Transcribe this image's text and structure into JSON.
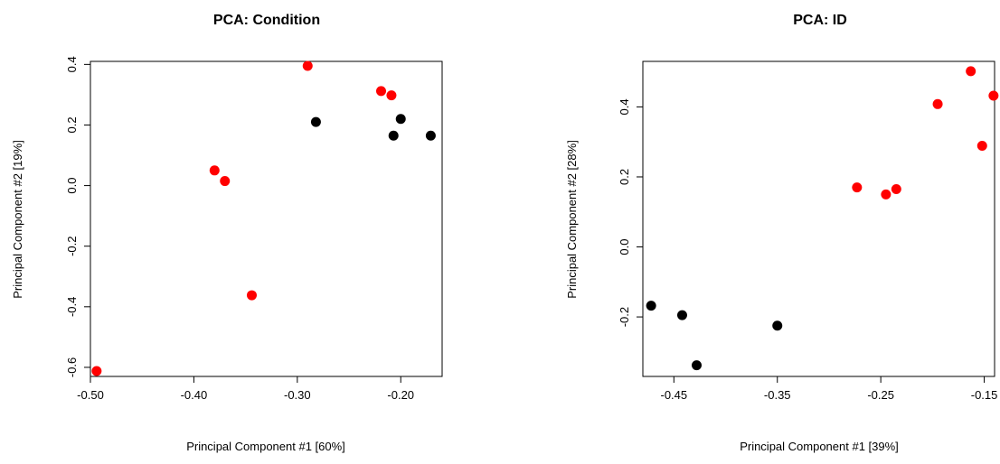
{
  "chart_data": [
    {
      "type": "scatter",
      "title": "PCA: Condition",
      "xlabel": "Principal Component #1 [60%]",
      "ylabel": "Principal Component #2 [19%]",
      "xlim": [
        -0.5,
        -0.16
      ],
      "ylim": [
        -0.63,
        0.41
      ],
      "xticks": [
        -0.5,
        -0.4,
        -0.3,
        -0.2
      ],
      "xtick_labels": [
        "-0.50",
        "-0.40",
        "-0.30",
        "-0.20"
      ],
      "yticks": [
        -0.6,
        -0.4,
        -0.2,
        0.0,
        0.2,
        0.4
      ],
      "ytick_labels": [
        "-0.6",
        "-0.4",
        "-0.2",
        "0.0",
        "0.2",
        "0.4"
      ],
      "series": [
        {
          "color": "#ff0000",
          "points": [
            {
              "x": -0.29,
              "y": 0.395
            },
            {
              "x": -0.219,
              "y": 0.312
            },
            {
              "x": -0.209,
              "y": 0.298
            },
            {
              "x": -0.38,
              "y": 0.05
            },
            {
              "x": -0.37,
              "y": 0.015
            },
            {
              "x": -0.344,
              "y": -0.362
            },
            {
              "x": -0.494,
              "y": -0.612
            }
          ]
        },
        {
          "color": "#000000",
          "points": [
            {
              "x": -0.282,
              "y": 0.21
            },
            {
              "x": -0.2,
              "y": 0.22
            },
            {
              "x": -0.207,
              "y": 0.165
            },
            {
              "x": -0.171,
              "y": 0.165
            }
          ]
        }
      ]
    },
    {
      "type": "scatter",
      "title": "PCA: ID",
      "xlabel": "Principal Component #1 [39%]",
      "ylabel": "Principal Component #2 [28%]",
      "xlim": [
        -0.48,
        -0.14
      ],
      "ylim": [
        -0.37,
        0.53
      ],
      "xticks": [
        -0.45,
        -0.35,
        -0.25,
        -0.15
      ],
      "xtick_labels": [
        "-0.45",
        "-0.35",
        "-0.25",
        "-0.15"
      ],
      "yticks": [
        -0.2,
        0.0,
        0.2,
        0.4
      ],
      "ytick_labels": [
        "-0.2",
        "0.0",
        "0.2",
        "0.4"
      ],
      "series": [
        {
          "color": "#ff0000",
          "points": [
            {
              "x": -0.163,
              "y": 0.502
            },
            {
              "x": -0.141,
              "y": 0.432
            },
            {
              "x": -0.195,
              "y": 0.408
            },
            {
              "x": -0.152,
              "y": 0.289
            },
            {
              "x": -0.273,
              "y": 0.17
            },
            {
              "x": -0.245,
              "y": 0.15
            },
            {
              "x": -0.235,
              "y": 0.165
            }
          ]
        },
        {
          "color": "#000000",
          "points": [
            {
              "x": -0.472,
              "y": -0.168
            },
            {
              "x": -0.442,
              "y": -0.195
            },
            {
              "x": -0.428,
              "y": -0.338
            },
            {
              "x": -0.35,
              "y": -0.225
            }
          ]
        }
      ]
    }
  ]
}
